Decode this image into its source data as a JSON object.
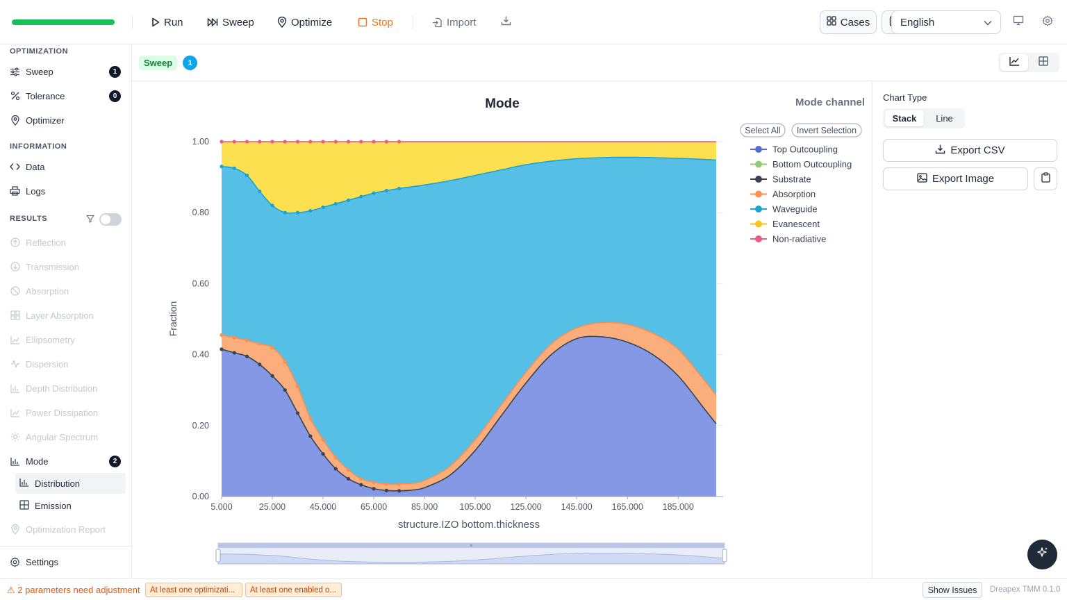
{
  "toolbar": {
    "run": "Run",
    "sweep": "Sweep",
    "optimize": "Optimize",
    "stop": "Stop",
    "import": "Import",
    "cases": "Cases",
    "language": "English",
    "progress": 1.0,
    "colors": {
      "progress": "#16c15a",
      "stop": "#f97316"
    }
  },
  "sidebar": {
    "optimization_title": "OPTIMIZATION",
    "sweep": {
      "label": "Sweep",
      "count": "1"
    },
    "tolerance": {
      "label": "Tolerance",
      "count": "0"
    },
    "optimizer": {
      "label": "Optimizer"
    },
    "information_title": "INFORMATION",
    "data": {
      "label": "Data"
    },
    "logs": {
      "label": "Logs"
    },
    "results_title": "RESULTS",
    "results_toggle": false,
    "results": [
      {
        "label": "Reflection",
        "icon": "circle-arrow-up-icon"
      },
      {
        "label": "Transmission",
        "icon": "circle-arrow-down-icon"
      },
      {
        "label": "Absorption",
        "icon": "ban-icon"
      },
      {
        "label": "Layer Absorption",
        "icon": "grid-icon"
      },
      {
        "label": "Ellipsometry",
        "icon": "area-chart-icon"
      },
      {
        "label": "Dispersion",
        "icon": "wave-icon"
      },
      {
        "label": "Depth Distribution",
        "icon": "bar-chart-icon"
      },
      {
        "label": "Power Dissipation",
        "icon": "area-chart-icon"
      },
      {
        "label": "Angular Spectrum",
        "icon": "sun-icon"
      }
    ],
    "mode": {
      "label": "Mode",
      "count": "2"
    },
    "mode_sub": [
      {
        "label": "Distribution",
        "active": true
      },
      {
        "label": "Emission",
        "active": false
      }
    ],
    "optimization_report": "Optimization Report",
    "settings": "Settings"
  },
  "subbar": {
    "tag": "Sweep",
    "count": "1"
  },
  "right_panel": {
    "chart_type_label": "Chart Type",
    "chart_types": [
      "Stack",
      "Line"
    ],
    "selected": "Stack",
    "export_csv": "Export CSV",
    "export_image": "Export Image"
  },
  "status": {
    "warning": "⚠ 2 parameters need adjustment",
    "chips": [
      "At least one optimizati...",
      "At least one enabled o..."
    ],
    "show_issues": "Show Issues",
    "version": "Dreapex TMM 0.1.0"
  },
  "chart_data": {
    "type": "area",
    "stacked": true,
    "title": "Mode",
    "legend_title": "Mode channel",
    "legend_buttons": [
      "Select All",
      "Invert Selection"
    ],
    "xlabel": "structure.IZO bottom.thickness",
    "ylabel": "Fraction",
    "xlim": [
      5,
      200
    ],
    "ylim": [
      0,
      1
    ],
    "x_ticks": [
      "5.000",
      "25.000",
      "45.000",
      "65.000",
      "85.000",
      "105.000",
      "125.000",
      "145.000",
      "165.000",
      "185.000"
    ],
    "x_tick_values": [
      5,
      25,
      45,
      65,
      85,
      105,
      125,
      145,
      165,
      185
    ],
    "y_ticks": [
      "0.00",
      "0.20",
      "0.40",
      "0.60",
      "0.80",
      "1.00"
    ],
    "y_tick_values": [
      0,
      0.2,
      0.4,
      0.6,
      0.8,
      1.0
    ],
    "legend_position": "right",
    "marker_points_x": [
      5,
      10,
      15,
      20,
      25,
      30,
      35,
      40,
      45,
      50,
      55,
      60,
      65,
      70,
      75
    ],
    "x": [
      5,
      10,
      15,
      20,
      25,
      30,
      35,
      40,
      45,
      50,
      55,
      60,
      65,
      70,
      75,
      80,
      85,
      95,
      105,
      115,
      125,
      135,
      145,
      155,
      165,
      175,
      185,
      195,
      200
    ],
    "series": [
      {
        "name": "Top Outcoupling",
        "color": "#5470c6",
        "fill": "#8598e6",
        "cumulative": [
          0.415,
          0.405,
          0.395,
          0.372,
          0.34,
          0.3,
          0.235,
          0.17,
          0.12,
          0.078,
          0.05,
          0.033,
          0.022,
          0.017,
          0.016,
          0.018,
          0.025,
          0.06,
          0.13,
          0.225,
          0.32,
          0.4,
          0.445,
          0.45,
          0.435,
          0.4,
          0.34,
          0.25,
          0.205
        ]
      },
      {
        "name": "Bottom Outcoupling",
        "color": "#91cc75",
        "fill": "#91cc75",
        "cumulative": [
          0.415,
          0.405,
          0.395,
          0.372,
          0.34,
          0.3,
          0.235,
          0.17,
          0.12,
          0.078,
          0.05,
          0.033,
          0.022,
          0.017,
          0.016,
          0.018,
          0.025,
          0.06,
          0.13,
          0.225,
          0.32,
          0.4,
          0.445,
          0.45,
          0.435,
          0.4,
          0.34,
          0.25,
          0.205
        ]
      },
      {
        "name": "Substrate",
        "color": "#3b4256",
        "fill": "#3b4256",
        "cumulative": [
          0.415,
          0.405,
          0.395,
          0.372,
          0.34,
          0.3,
          0.235,
          0.17,
          0.12,
          0.078,
          0.05,
          0.033,
          0.022,
          0.017,
          0.016,
          0.018,
          0.025,
          0.06,
          0.13,
          0.225,
          0.32,
          0.4,
          0.445,
          0.45,
          0.435,
          0.4,
          0.34,
          0.25,
          0.205
        ]
      },
      {
        "name": "Absorption",
        "color": "#fc8f4f",
        "fill": "#fcad7c",
        "cumulative": [
          0.455,
          0.448,
          0.44,
          0.43,
          0.42,
          0.38,
          0.31,
          0.22,
          0.16,
          0.11,
          0.075,
          0.05,
          0.04,
          0.035,
          0.035,
          0.037,
          0.045,
          0.085,
          0.16,
          0.255,
          0.35,
          0.43,
          0.475,
          0.49,
          0.485,
          0.46,
          0.415,
          0.33,
          0.285
        ]
      },
      {
        "name": "Waveguide",
        "color": "#1ba2d6",
        "fill": "#55bfe6",
        "cumulative": [
          0.93,
          0.925,
          0.905,
          0.86,
          0.82,
          0.8,
          0.8,
          0.805,
          0.815,
          0.825,
          0.835,
          0.845,
          0.855,
          0.862,
          0.868,
          0.873,
          0.878,
          0.89,
          0.905,
          0.92,
          0.935,
          0.945,
          0.952,
          0.955,
          0.956,
          0.955,
          0.953,
          0.95,
          0.948
        ]
      },
      {
        "name": "Evanescent",
        "color": "#fac322",
        "fill": "#fde050",
        "cumulative": [
          1.0,
          1.0,
          1.0,
          1.0,
          1.0,
          1.0,
          1.0,
          1.0,
          1.0,
          1.0,
          1.0,
          1.0,
          1.0,
          1.0,
          1.0,
          1.0,
          1.0,
          1.0,
          1.0,
          1.0,
          1.0,
          1.0,
          1.0,
          1.0,
          1.0,
          1.0,
          1.0,
          1.0,
          1.0
        ]
      },
      {
        "name": "Non-radiative",
        "color": "#ee5a86",
        "fill": "#ee5a86",
        "cumulative": [
          1.0,
          1.0,
          1.0,
          1.0,
          1.0,
          1.0,
          1.0,
          1.0,
          1.0,
          1.0,
          1.0,
          1.0,
          1.0,
          1.0,
          1.0,
          1.0,
          1.0,
          1.0,
          1.0,
          1.0,
          1.0,
          1.0,
          1.0,
          1.0,
          1.0,
          1.0,
          1.0,
          1.0,
          1.0
        ]
      }
    ]
  }
}
